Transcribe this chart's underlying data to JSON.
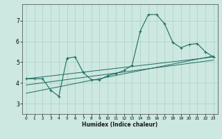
{
  "xlabel": "Humidex (Indice chaleur)",
  "xlim": [
    -0.5,
    23.5
  ],
  "ylim": [
    2.5,
    7.8
  ],
  "yticks": [
    3,
    4,
    5,
    6,
    7
  ],
  "xticks": [
    0,
    1,
    2,
    3,
    4,
    5,
    6,
    7,
    8,
    9,
    10,
    11,
    12,
    13,
    14,
    15,
    16,
    17,
    18,
    19,
    20,
    21,
    22,
    23
  ],
  "bg_color": "#cce8e0",
  "grid_color": "#aad0c8",
  "line_color": "#1e6b60",
  "lines": [
    {
      "x": [
        0,
        1,
        2,
        3,
        4,
        5,
        6,
        7,
        8,
        9,
        10,
        11,
        12,
        13,
        14,
        15,
        16,
        17,
        18,
        19,
        20,
        21,
        22,
        23
      ],
      "y": [
        4.2,
        4.2,
        4.2,
        3.65,
        3.35,
        5.2,
        5.25,
        4.5,
        4.15,
        4.15,
        4.35,
        4.45,
        4.6,
        4.85,
        6.5,
        7.3,
        7.3,
        6.85,
        5.95,
        5.7,
        5.85,
        5.9,
        5.5,
        5.25
      ]
    },
    {
      "x": [
        0,
        23
      ],
      "y": [
        4.2,
        5.25
      ]
    },
    {
      "x": [
        0,
        23
      ],
      "y": [
        3.9,
        5.1
      ]
    },
    {
      "x": [
        0,
        23
      ],
      "y": [
        3.5,
        5.3
      ]
    }
  ]
}
